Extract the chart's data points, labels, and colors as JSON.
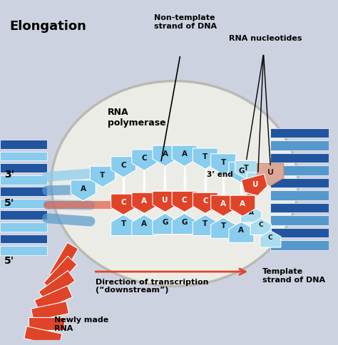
{
  "bg_color": "#cdd2e0",
  "bubble_face": "#eeeee8",
  "bubble_edge": "#b8b8b0",
  "blue_dark": "#2255a0",
  "blue_mid": "#5599cc",
  "blue_light": "#88ccee",
  "blue_pale": "#aaddee",
  "red_dark": "#cc3322",
  "red_mid": "#e04428",
  "peach": "#dba898",
  "white": "#ffffff",
  "labels": {
    "title": "Elongation",
    "rna_pol": "RNA\npolymerase",
    "non_template": "Non-template\nstrand of DNA",
    "rna_nucleotides": "RNA nucleotides",
    "three_end": "3’ end",
    "direction": "Direction of transcription\n(“downstream”)",
    "template": "Template\nstrand of DNA",
    "newly_made": "Newly made\nRNA"
  }
}
